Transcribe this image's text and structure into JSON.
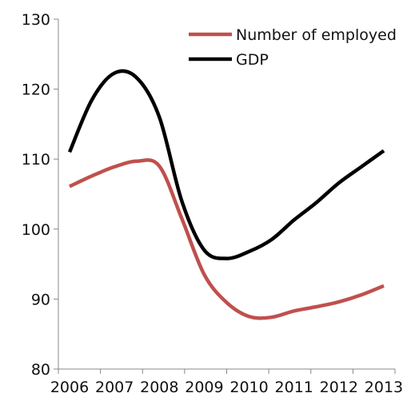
{
  "chart_data": {
    "type": "line",
    "categories": [
      "2006",
      "2007",
      "2008",
      "2009",
      "2010",
      "2011",
      "2012",
      "2013"
    ],
    "series": [
      {
        "name": "Number of employed",
        "color": "#c0504d",
        "x": [
          2006.0,
          2006.5,
          2007.0,
          2007.5,
          2008.0,
          2008.5,
          2009.0,
          2009.5,
          2010.0,
          2010.5,
          2011.0,
          2011.5,
          2012.0,
          2012.5,
          2013.0
        ],
        "values": [
          106.1,
          107.6,
          108.9,
          109.7,
          109.0,
          101.5,
          93.5,
          89.5,
          87.5,
          87.4,
          88.3,
          88.9,
          89.6,
          90.6,
          91.9
        ]
      },
      {
        "name": "GDP",
        "color": "#000000",
        "x": [
          2006.0,
          2006.5,
          2007.0,
          2007.5,
          2008.0,
          2008.5,
          2009.0,
          2009.5,
          2010.0,
          2010.5,
          2011.0,
          2011.5,
          2012.0,
          2012.5,
          2013.0
        ],
        "values": [
          111.0,
          118.5,
          122.3,
          121.6,
          116.0,
          104.0,
          97.0,
          95.8,
          96.8,
          98.5,
          101.3,
          103.8,
          106.6,
          108.9,
          111.2
        ]
      }
    ],
    "yticks": [
      "80",
      "90",
      "100",
      "110",
      "120",
      "130"
    ],
    "ylim": [
      80,
      130
    ],
    "xlim": [
      2005.75,
      2013.25
    ],
    "grid": false,
    "legend_position": "top-right"
  }
}
